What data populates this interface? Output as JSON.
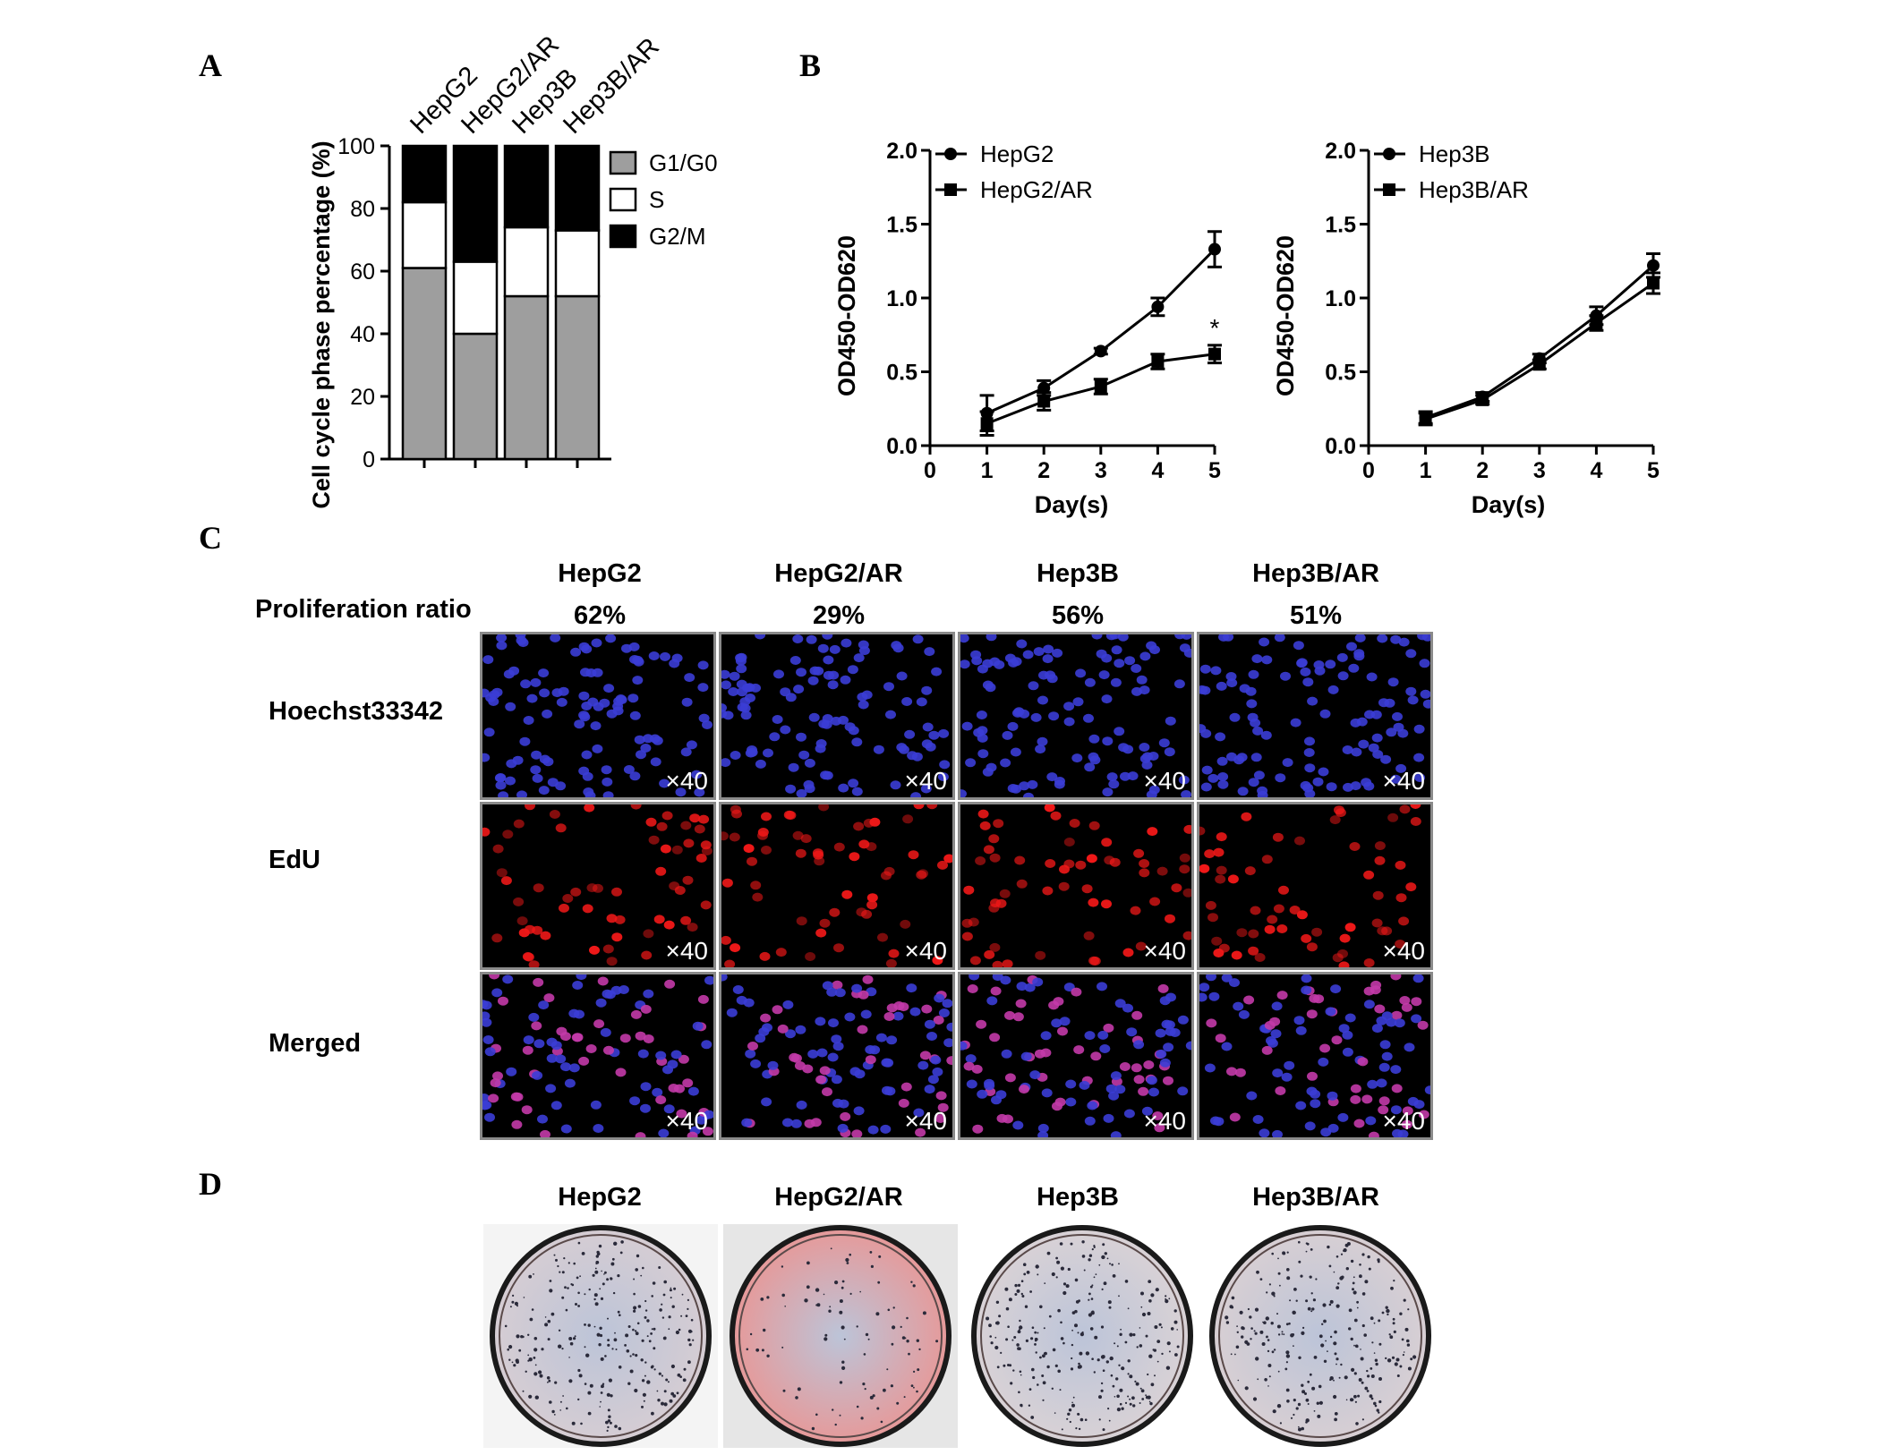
{
  "panel_labels": {
    "a": "A",
    "b": "B",
    "c": "C",
    "d": "D"
  },
  "panel_a": {
    "ylabel": "Cell cycle phase percentage (%)",
    "yticks": [
      "0",
      "20",
      "40",
      "60",
      "80",
      "100"
    ],
    "legend": [
      "G1/G0",
      "S",
      "G2/M"
    ]
  },
  "panel_b": {
    "left": {
      "ylabel": "OD450-OD620",
      "xlabel": "Day(s)",
      "legend": [
        "HepG2",
        "HepG2/AR"
      ],
      "significance": "*"
    },
    "right": {
      "ylabel": "OD450-OD620",
      "xlabel": "Day(s)",
      "legend": [
        "Hep3B",
        "Hep3B/AR"
      ]
    },
    "xticks": [
      "0",
      "1",
      "2",
      "3",
      "4",
      "5"
    ],
    "yticks": [
      "0.0",
      "0.5",
      "1.0",
      "1.5",
      "2.0"
    ]
  },
  "panel_c": {
    "columns": [
      "HepG2",
      "HepG2/AR",
      "Hep3B",
      "Hep3B/AR"
    ],
    "ratio_label": "Proliferation ratio",
    "ratios": [
      "62%",
      "29%",
      "56%",
      "51%"
    ],
    "rows": [
      "Hoechst33342",
      "EdU",
      "Merged"
    ],
    "magnification": "×40",
    "colors": {
      "hoechst": "#3b3dd6",
      "edu": "#f01818",
      "merged_pink": "#c33aa8"
    }
  },
  "panel_d": {
    "columns": [
      "HepG2",
      "HepG2/AR",
      "Hep3B",
      "Hep3B/AR"
    ]
  },
  "chart_data": [
    {
      "type": "bar",
      "stacked": true,
      "title": "",
      "categories": [
        "HepG2",
        "HepG2/AR",
        "Hep3B",
        "Hep3B/AR"
      ],
      "series": [
        {
          "name": "G1/G0",
          "values": [
            61,
            40,
            52,
            52
          ],
          "color": "#9e9e9e"
        },
        {
          "name": "S",
          "values": [
            21,
            23,
            22,
            21
          ],
          "color": "#ffffff"
        },
        {
          "name": "G2/M",
          "values": [
            18,
            37,
            26,
            27
          ],
          "color": "#000000"
        }
      ],
      "ylabel": "Cell cycle phase percentage (%)",
      "ylim": [
        0,
        100
      ],
      "legend": "right"
    },
    {
      "type": "line",
      "title": "",
      "x": [
        1,
        2,
        3,
        4,
        5
      ],
      "series": [
        {
          "name": "HepG2",
          "values": [
            0.22,
            0.39,
            0.64,
            0.94,
            1.33
          ],
          "errors": [
            0.12,
            0.05,
            0.02,
            0.06,
            0.12
          ],
          "marker": "circle"
        },
        {
          "name": "HepG2/AR",
          "values": [
            0.15,
            0.3,
            0.4,
            0.57,
            0.62
          ],
          "errors": [
            0.08,
            0.06,
            0.05,
            0.05,
            0.06
          ],
          "marker": "square"
        }
      ],
      "xlabel": "Day(s)",
      "ylabel": "OD450-OD620",
      "xlim": [
        0,
        5
      ],
      "ylim": [
        0,
        2.0
      ],
      "annotations": [
        "*"
      ],
      "legend": "top-left"
    },
    {
      "type": "line",
      "title": "",
      "x": [
        1,
        2,
        3,
        4,
        5
      ],
      "series": [
        {
          "name": "Hep3B",
          "values": [
            0.19,
            0.33,
            0.59,
            0.88,
            1.22
          ],
          "errors": [
            0.04,
            0.03,
            0.03,
            0.06,
            0.08
          ],
          "marker": "circle"
        },
        {
          "name": "Hep3B/AR",
          "values": [
            0.18,
            0.31,
            0.55,
            0.83,
            1.1
          ],
          "errors": [
            0.04,
            0.03,
            0.03,
            0.05,
            0.07
          ],
          "marker": "square"
        }
      ],
      "xlabel": "Day(s)",
      "ylabel": "OD450-OD620",
      "xlim": [
        0,
        5
      ],
      "ylim": [
        0,
        2.0
      ],
      "legend": "top-left"
    }
  ]
}
